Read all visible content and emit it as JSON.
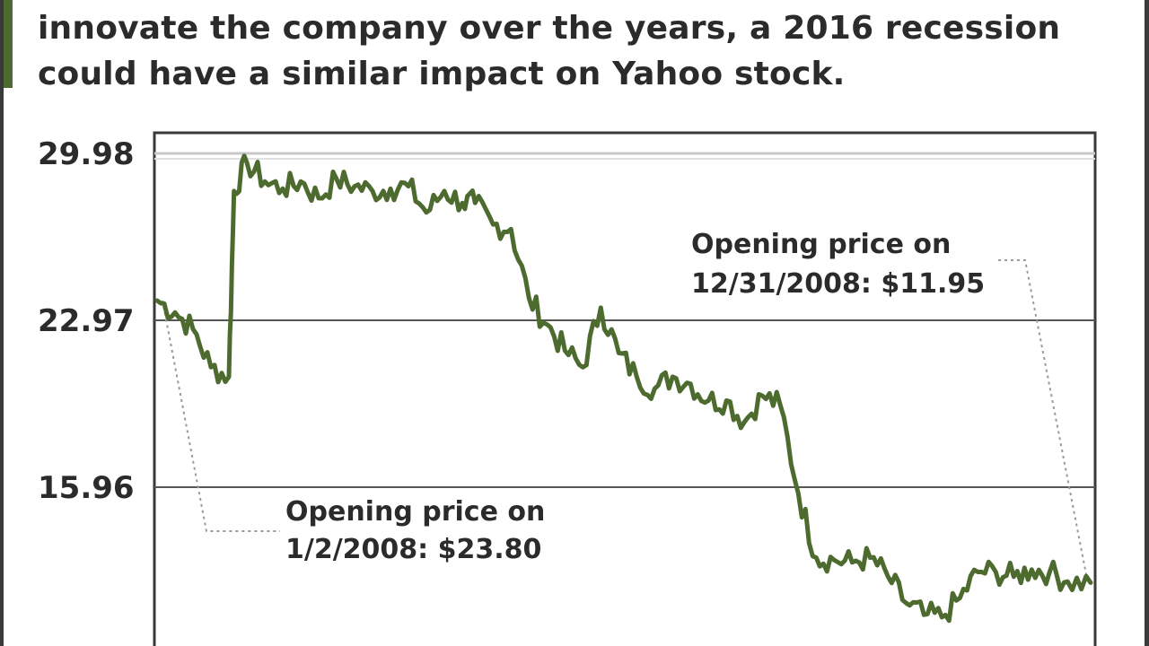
{
  "intro_lines": [
    "innovate the company over the years, a 2016 recession",
    "could have a similar impact on Yahoo stock."
  ],
  "colors": {
    "line": "#4d6b2f",
    "accent": "#4d6b2f",
    "grid": "#555555",
    "text": "#2b2b2b"
  },
  "chart_data": {
    "type": "line",
    "title": "",
    "xlabel": "",
    "ylabel": "",
    "x_range": [
      "1/2/2008",
      "12/31/2008"
    ],
    "ylim": [
      8.95,
      29.98
    ],
    "yticks": [
      "29.98",
      "22.97",
      "15.96"
    ],
    "grid": "horizontal",
    "annotations": [
      {
        "line1": "Opening price on",
        "line2": "1/2/2008: $23.80",
        "x": "1/2/2008",
        "y": 23.8
      },
      {
        "line1": "Opening price on",
        "line2": "12/31/2008: $11.95",
        "x": "12/31/2008",
        "y": 11.95
      }
    ],
    "series": [
      {
        "x": [
          "2008-01-02",
          "2008-01-09",
          "2008-01-16",
          "2008-01-23",
          "2008-01-30",
          "2008-02-01",
          "2008-02-06",
          "2008-02-13",
          "2008-02-20",
          "2008-02-27",
          "2008-03-05",
          "2008-03-12",
          "2008-03-19",
          "2008-03-26",
          "2008-04-02",
          "2008-04-09",
          "2008-04-16",
          "2008-04-23",
          "2008-04-30",
          "2008-05-05",
          "2008-05-12",
          "2008-05-19",
          "2008-05-26",
          "2008-06-02",
          "2008-06-09",
          "2008-06-16",
          "2008-06-23",
          "2008-06-30",
          "2008-07-07",
          "2008-07-14",
          "2008-07-21",
          "2008-07-28",
          "2008-08-04",
          "2008-08-11",
          "2008-08-18",
          "2008-08-25",
          "2008-09-01",
          "2008-09-08",
          "2008-09-15",
          "2008-09-22",
          "2008-09-29",
          "2008-10-06",
          "2008-10-13",
          "2008-10-20",
          "2008-10-27",
          "2008-11-03",
          "2008-11-10",
          "2008-11-17",
          "2008-11-24",
          "2008-12-01",
          "2008-12-08",
          "2008-12-15",
          "2008-12-22",
          "2008-12-31"
        ],
        "values": [
          23.8,
          23.3,
          22.6,
          21.0,
          20.6,
          28.4,
          29.6,
          28.8,
          28.5,
          28.8,
          28.1,
          28.9,
          28.6,
          28.4,
          28.5,
          28.6,
          27.5,
          28.4,
          27.9,
          27.9,
          27.0,
          26.8,
          23.9,
          22.8,
          21.7,
          21.0,
          23.5,
          21.6,
          20.6,
          20.1,
          20.6,
          20.3,
          19.6,
          19.6,
          18.7,
          19.8,
          19.4,
          15.7,
          13.0,
          12.9,
          12.8,
          13.0,
          12.2,
          11.1,
          10.6,
          10.5,
          11.3,
          12.4,
          12.4,
          12.2,
          12.5,
          12.4,
          12.0,
          11.95
        ]
      }
    ]
  }
}
